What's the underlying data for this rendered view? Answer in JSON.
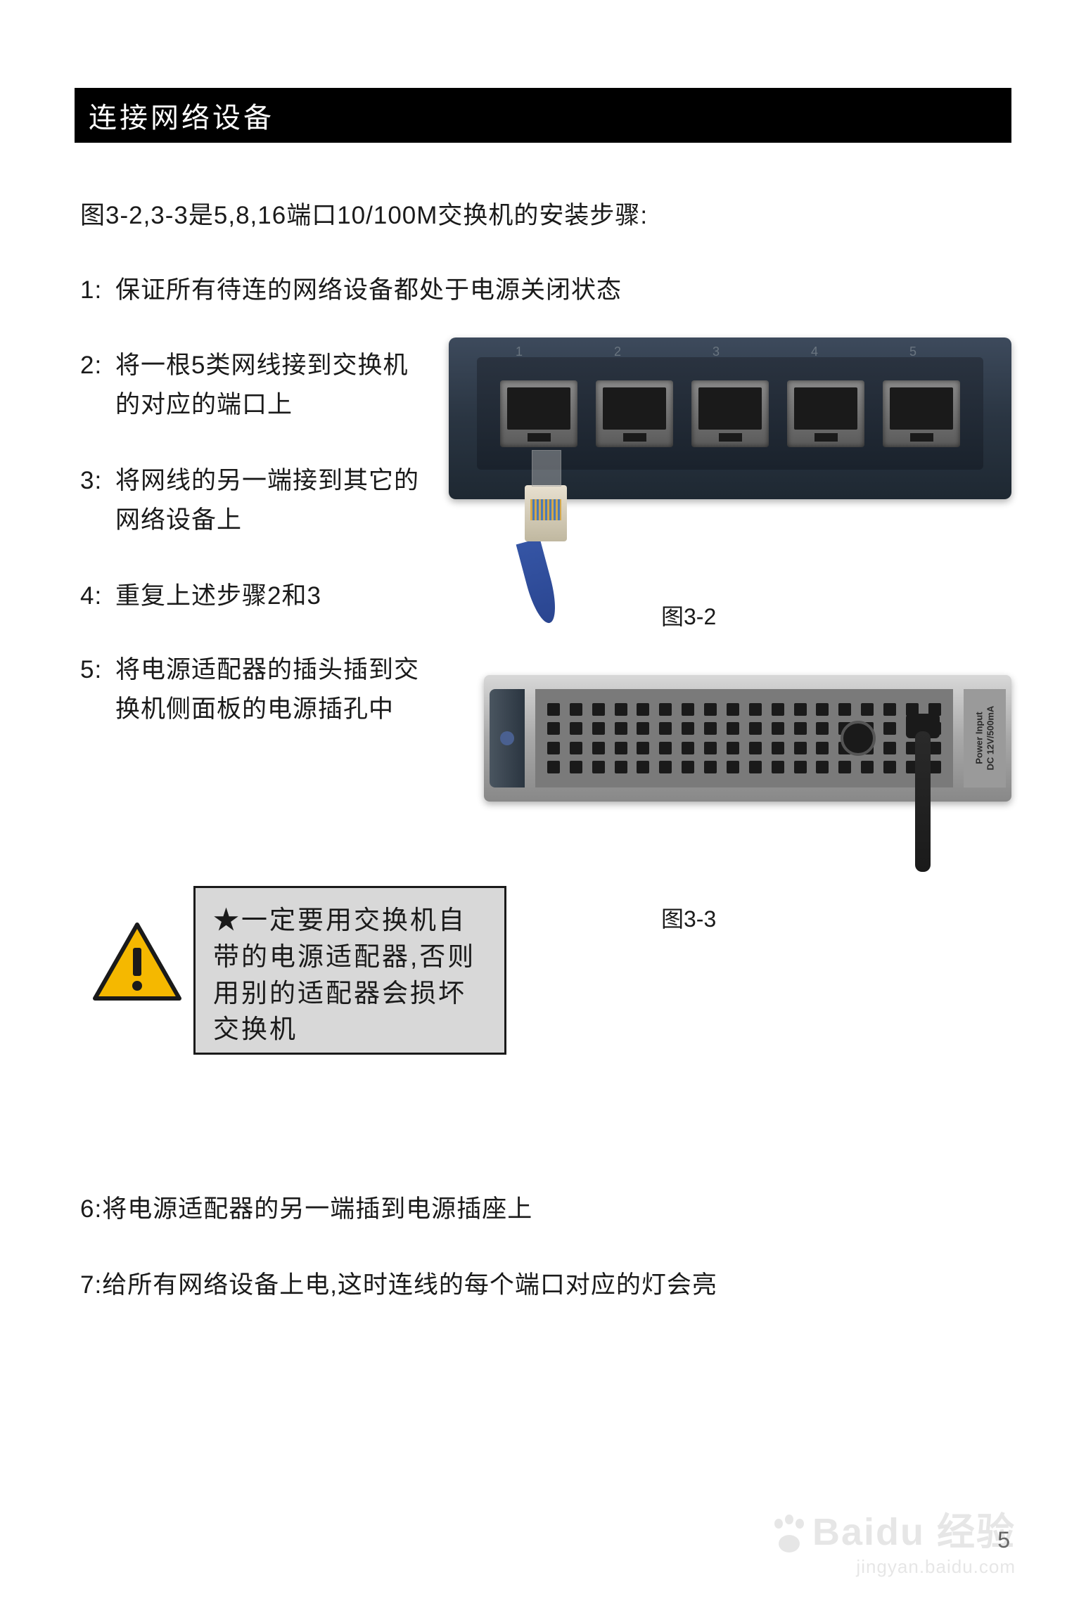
{
  "header": {
    "title": "连接网络设备"
  },
  "intro": "图3-2,3-3是5,8,16端口10/100M交换机的安装步骤:",
  "steps": {
    "s1": {
      "num": "1:",
      "text": "保证所有待连的网络设备都处于电源关闭状态"
    },
    "s2": {
      "num": "2:",
      "text": "将一根5类网线接到交换机的对应的端口上"
    },
    "s3": {
      "num": "3:",
      "text": "将网线的另一端接到其它的网络设备上"
    },
    "s4": {
      "num": "4:",
      "text": "重复上述步骤2和3"
    },
    "s5": {
      "num": "5:",
      "text": "将电源适配器的插头插到交换机侧面板的电源插孔中"
    },
    "s6": {
      "num": "6:",
      "text": "将电源适配器的另一端插到电源插座上"
    },
    "s7": {
      "num": "7:",
      "text": "给所有网络设备上电,这时连线的每个端口对应的灯会亮"
    }
  },
  "figures": {
    "fig1": {
      "caption": "图3-2",
      "port_labels": [
        "1",
        "2",
        "3",
        "4",
        "5"
      ],
      "port_count": 5,
      "body_color_top": "#3d4a5c",
      "body_color_bottom": "#1e2832",
      "port_color": "#8a8a8a",
      "cable_color": "#3555a5"
    },
    "fig2": {
      "caption": "图3-3",
      "side_color_top": "#d8d8d8",
      "side_color_bottom": "#888888",
      "vent_rows": 4,
      "vent_cols": 18,
      "power_label_line1": "Power Input",
      "power_label_line2": "DC 12V/500mA",
      "cable_color": "#1a1a1a"
    }
  },
  "warning": {
    "star": "★",
    "text": "一定要用交换机自带的电源适配器,否则用别的适配器会损坏交换机",
    "bg_color": "#d8d8d8",
    "border_color": "#1a1a1a",
    "icon_fill": "#f5b800",
    "icon_stroke": "#1a1a1a"
  },
  "page_number": "5",
  "watermark": {
    "brand": "Baidu 经验",
    "url": "jingyan.baidu.com"
  }
}
